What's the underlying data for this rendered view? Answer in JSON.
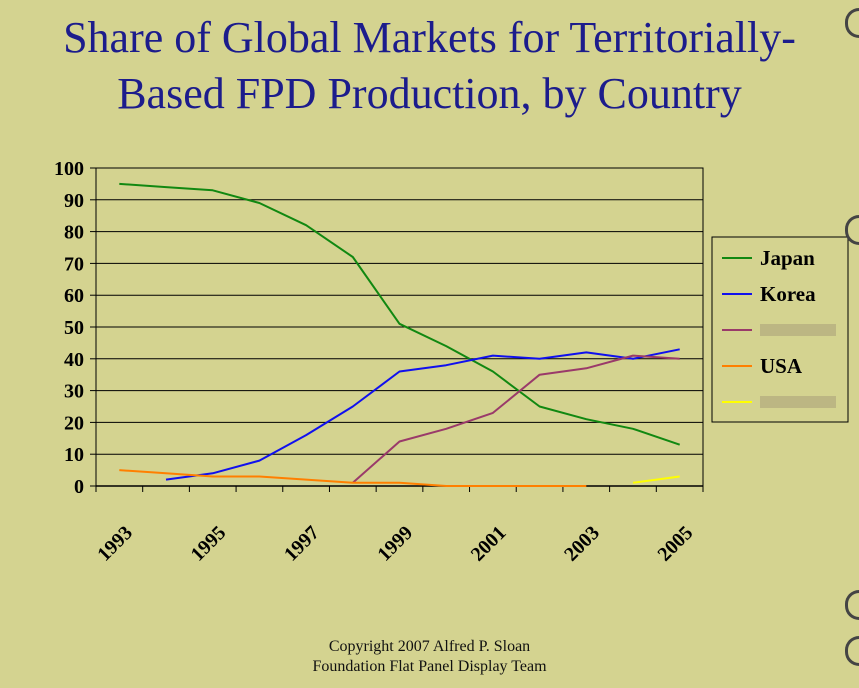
{
  "title_lines": [
    "Share of Global Markets for Territorially-",
    "Based FPD Production, by Country"
  ],
  "copyright_lines": [
    "Copyright 2007 Alfred P. Sloan",
    "Foundation Flat Panel Display Team"
  ],
  "chart_data": {
    "type": "line",
    "title": "Share of Global Markets for Territorially-Based FPD Production, by Country",
    "xlabel": "",
    "ylabel": "",
    "x_tick_labels": [
      "1993",
      "1995",
      "1997",
      "1999",
      "2001",
      "2003",
      "2005"
    ],
    "xlim": [
      1993,
      2005
    ],
    "ylim": [
      0,
      100
    ],
    "y_ticks": [
      0,
      10,
      20,
      30,
      40,
      50,
      60,
      70,
      80,
      90,
      100
    ],
    "grid": true,
    "legend_position": "right",
    "series": [
      {
        "name": "Japan",
        "color": "#118811",
        "x": [
          1993,
          1994,
          1995,
          1996,
          1997,
          1998,
          1999,
          2000,
          2001,
          2002,
          2003,
          2004,
          2005
        ],
        "y": [
          95,
          94,
          93,
          89,
          82,
          72,
          51,
          44,
          36,
          25,
          21,
          18,
          13
        ]
      },
      {
        "name": "Korea",
        "color": "#1010ee",
        "x": [
          1994,
          1995,
          1996,
          1997,
          1998,
          1999,
          2000,
          2001,
          2002,
          2003,
          2004,
          2005
        ],
        "y": [
          2,
          4,
          8,
          16,
          25,
          36,
          38,
          41,
          40,
          42,
          40,
          43
        ]
      },
      {
        "name": "",
        "color": "#9a3a6a",
        "x": [
          1998,
          1999,
          2000,
          2001,
          2002,
          2003,
          2004,
          2005
        ],
        "y": [
          1,
          14,
          18,
          23,
          35,
          37,
          41,
          40
        ]
      },
      {
        "name": "USA",
        "color": "#ff7f00",
        "x": [
          1993,
          1994,
          1995,
          1996,
          1997,
          1998,
          1999,
          2000,
          2001,
          2002,
          2003
        ],
        "y": [
          5,
          4,
          3,
          3,
          2,
          1,
          1,
          0,
          0,
          0,
          0
        ]
      },
      {
        "name": "",
        "color": "#ffff00",
        "x": [
          2004,
          2005
        ],
        "y": [
          1,
          3
        ]
      }
    ]
  }
}
